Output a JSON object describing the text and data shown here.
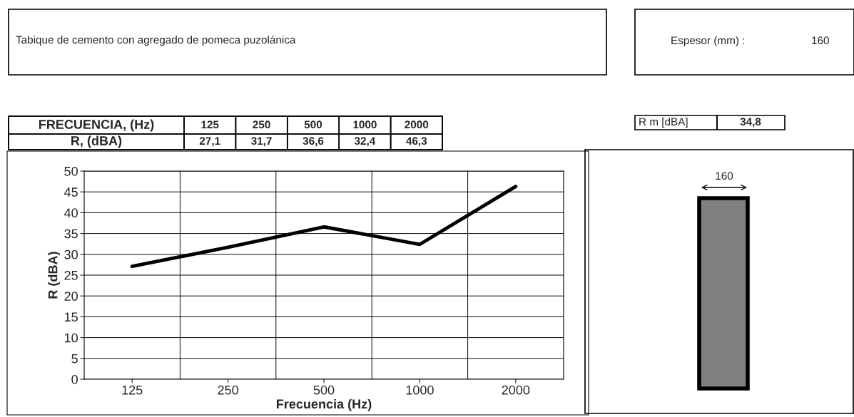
{
  "chart_data": {
    "type": "line",
    "xlabel": "Frecuencia (Hz)",
    "ylabel": "R (dBA)",
    "categories": [
      "125",
      "250",
      "500",
      "1000",
      "2000"
    ],
    "series": [
      {
        "color": "#000000",
        "values": [
          27.1,
          31.7,
          36.6,
          32.4,
          46.3
        ]
      }
    ],
    "ylim": [
      0,
      50
    ],
    "yticks": [
      0,
      5,
      10,
      15,
      20,
      25,
      30,
      35,
      40,
      45,
      50
    ],
    "grid": true,
    "marker": "none",
    "line_style": "solid",
    "annotations": [
      "Tabique de cemento con agregado de pomeca puzolánica",
      "Espesor (mm) :",
      "160",
      "FRECUENCIA, (Hz)",
      "R, (dBA)",
      "R m [dBA]",
      "34,8",
      "160",
      "27,1",
      "31,7",
      "36,6",
      "32,4",
      "46,3"
    ]
  }
}
